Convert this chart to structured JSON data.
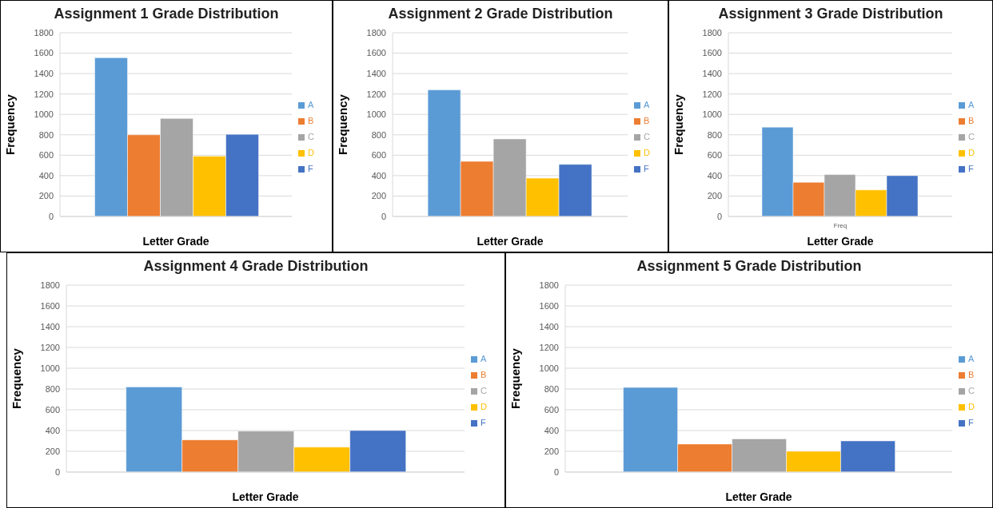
{
  "chart_data": [
    {
      "type": "bar",
      "title": "Assignment 1 Grade Distribution",
      "xlabel": "Letter Grade",
      "ylabel": "Frequency",
      "categories": [
        null
      ],
      "series": [
        {
          "name": "A",
          "color": "#5b9bd5",
          "values": [
            1555
          ]
        },
        {
          "name": "B",
          "color": "#ed7d31",
          "values": [
            800
          ]
        },
        {
          "name": "C",
          "color": "#a5a5a5",
          "values": [
            960
          ]
        },
        {
          "name": "D",
          "color": "#ffc000",
          "values": [
            590
          ]
        },
        {
          "name": "F",
          "color": "#4472c4",
          "values": [
            805
          ]
        }
      ],
      "ylim": [
        0,
        1800
      ],
      "yticks": [
        0,
        200,
        400,
        600,
        800,
        1000,
        1200,
        1400,
        1600,
        1800
      ],
      "grid": "y",
      "legend": "right"
    },
    {
      "type": "bar",
      "title": "Assignment 2 Grade Distribution",
      "xlabel": "Letter Grade",
      "ylabel": "Frequency",
      "categories": [
        null
      ],
      "series": [
        {
          "name": "A",
          "color": "#5b9bd5",
          "values": [
            1240
          ]
        },
        {
          "name": "B",
          "color": "#ed7d31",
          "values": [
            540
          ]
        },
        {
          "name": "C",
          "color": "#a5a5a5",
          "values": [
            760
          ]
        },
        {
          "name": "D",
          "color": "#ffc000",
          "values": [
            375
          ]
        },
        {
          "name": "F",
          "color": "#4472c4",
          "values": [
            510
          ]
        }
      ],
      "ylim": [
        0,
        1800
      ],
      "yticks": [
        0,
        200,
        400,
        600,
        800,
        1000,
        1200,
        1400,
        1600,
        1800
      ],
      "grid": "y",
      "legend": "right"
    },
    {
      "type": "bar",
      "title": "Assignment 3 Grade Distribution",
      "xlabel": "Letter Grade",
      "ylabel": "Frequency",
      "categories": [
        "Freq"
      ],
      "series": [
        {
          "name": "A",
          "color": "#5b9bd5",
          "values": [
            875
          ]
        },
        {
          "name": "B",
          "color": "#ed7d31",
          "values": [
            335
          ]
        },
        {
          "name": "C",
          "color": "#a5a5a5",
          "values": [
            410
          ]
        },
        {
          "name": "D",
          "color": "#ffc000",
          "values": [
            260
          ]
        },
        {
          "name": "F",
          "color": "#4472c4",
          "values": [
            400
          ]
        }
      ],
      "ylim": [
        0,
        1800
      ],
      "yticks": [
        0,
        200,
        400,
        600,
        800,
        1000,
        1200,
        1400,
        1600,
        1800
      ],
      "grid": "y",
      "legend": "right"
    },
    {
      "type": "bar",
      "title": "Assignment 4 Grade Distribution",
      "xlabel": "Letter Grade",
      "ylabel": "Frequency",
      "categories": [
        null
      ],
      "series": [
        {
          "name": "A",
          "color": "#5b9bd5",
          "values": [
            820
          ]
        },
        {
          "name": "B",
          "color": "#ed7d31",
          "values": [
            310
          ]
        },
        {
          "name": "C",
          "color": "#a5a5a5",
          "values": [
            395
          ]
        },
        {
          "name": "D",
          "color": "#ffc000",
          "values": [
            240
          ]
        },
        {
          "name": "F",
          "color": "#4472c4",
          "values": [
            400
          ]
        }
      ],
      "ylim": [
        0,
        1800
      ],
      "yticks": [
        0,
        200,
        400,
        600,
        800,
        1000,
        1200,
        1400,
        1600,
        1800
      ],
      "grid": "y",
      "legend": "right"
    },
    {
      "type": "bar",
      "title": "Assignment 5 Grade Distribution",
      "xlabel": "Letter Grade",
      "ylabel": "Frequency",
      "categories": [
        null
      ],
      "series": [
        {
          "name": "A",
          "color": "#5b9bd5",
          "values": [
            815
          ]
        },
        {
          "name": "B",
          "color": "#ed7d31",
          "values": [
            270
          ]
        },
        {
          "name": "C",
          "color": "#a5a5a5",
          "values": [
            320
          ]
        },
        {
          "name": "D",
          "color": "#ffc000",
          "values": [
            200
          ]
        },
        {
          "name": "F",
          "color": "#4472c4",
          "values": [
            300
          ]
        }
      ],
      "ylim": [
        0,
        1800
      ],
      "yticks": [
        0,
        200,
        400,
        600,
        800,
        1000,
        1200,
        1400,
        1600,
        1800
      ],
      "grid": "y",
      "legend": "right"
    }
  ]
}
